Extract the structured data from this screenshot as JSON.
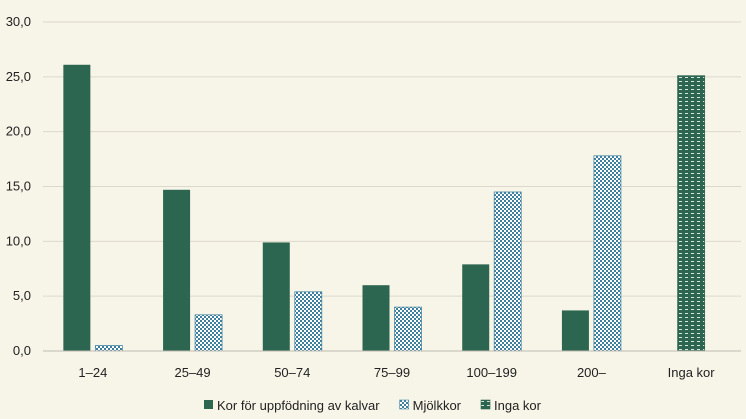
{
  "chart_data": {
    "type": "bar",
    "title": "",
    "xlabel": "",
    "ylabel": "",
    "ylim": [
      0,
      30
    ],
    "yticks": [
      "0,0",
      "5,0",
      "10,0",
      "15,0",
      "20,0",
      "25,0",
      "30,0"
    ],
    "grid": true,
    "legend_position": "bottom",
    "categories": [
      "1–24",
      "25–49",
      "50–74",
      "75–99",
      "100–199",
      "200–",
      "Inga kor"
    ],
    "series": [
      {
        "name": "Kor för uppfödning av kalvar",
        "color": "#2d6650",
        "pattern": "solid",
        "values": [
          26.1,
          14.7,
          9.9,
          6.0,
          7.9,
          3.7,
          null
        ]
      },
      {
        "name": "Mjölkkor",
        "color": "#4a8aa6",
        "pattern": "checker",
        "values": [
          0.5,
          3.3,
          5.4,
          4.0,
          14.5,
          17.8,
          null
        ]
      },
      {
        "name": "Inga kor",
        "color": "#2d6650",
        "pattern": "dashed",
        "values": [
          null,
          null,
          null,
          null,
          null,
          null,
          25.1
        ]
      }
    ]
  }
}
